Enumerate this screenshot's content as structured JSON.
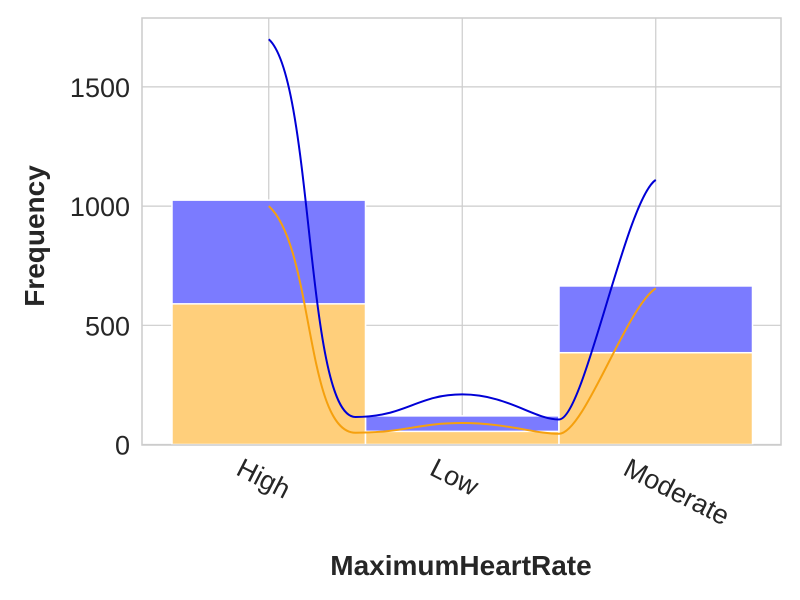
{
  "chart_data": {
    "type": "bar",
    "xlabel": "MaximumHeartRate",
    "ylabel": "Frequency",
    "categories": [
      "High",
      "Low",
      "Moderate"
    ],
    "ylim": [
      0,
      1800
    ],
    "yticks": [
      0,
      500,
      1000,
      1500
    ],
    "grid": true,
    "series": [
      {
        "color": "#7b7bff",
        "bar_values": [
          1025,
          120,
          665
        ],
        "kde_values": [
          1700,
          210,
          1110
        ],
        "kde_color": "#0000d6"
      },
      {
        "color": "#ffcf7b",
        "bar_values": [
          590,
          55,
          385
        ],
        "kde_values": [
          1000,
          90,
          655
        ],
        "kde_color": "#f5a00e"
      }
    ]
  }
}
